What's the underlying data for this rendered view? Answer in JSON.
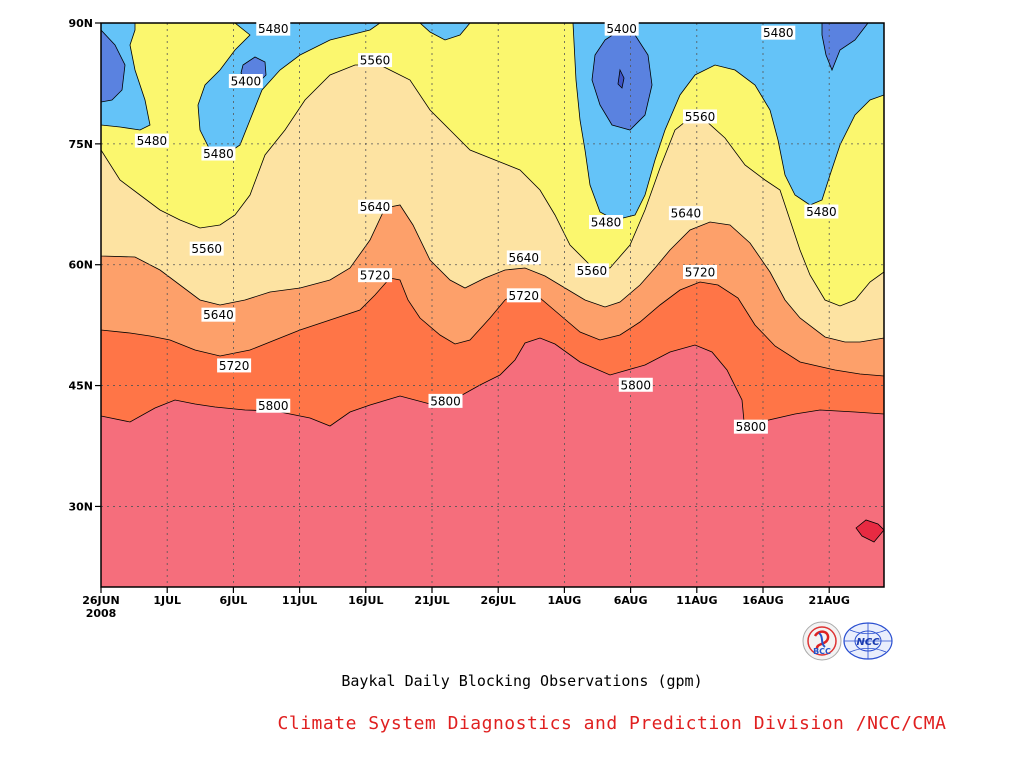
{
  "chart_data": {
    "type": "contour",
    "title": "Baykal Daily Blocking Observations (gpm)",
    "credit": "Climate System Diagnostics and Prediction Division /NCC/CMA",
    "x_ticks": [
      "26JUN",
      "1JUL",
      "6JUL",
      "11JUL",
      "16JUL",
      "21JUL",
      "26JUL",
      "1AUG",
      "6AUG",
      "11AUG",
      "16AUG",
      "21AUG"
    ],
    "x_year": "2008",
    "y_ticks": [
      "30N",
      "45N",
      "60N",
      "75N",
      "90N"
    ],
    "y_values": [
      30,
      45,
      60,
      75,
      90
    ],
    "ylim": [
      20,
      90
    ],
    "contour_levels": [
      5400,
      5480,
      5560,
      5640,
      5720,
      5800
    ],
    "fill_colors": {
      "below_5400": "#5a82e0",
      "5400_5480": "#64c3f8",
      "5480_5560": "#fbf76e",
      "5560_5640": "#fde3a2",
      "5640_5720": "#fda06a",
      "5720_5800": "#ff7547",
      "above_5800": "#f56e7c",
      "peak": "#e82a42"
    },
    "contour_labels": [
      {
        "text": "5480",
        "x": 0.22,
        "y": 89.3
      },
      {
        "text": "5400",
        "x": 0.185,
        "y": 82.8
      },
      {
        "text": "5560",
        "x": 0.35,
        "y": 85.4
      },
      {
        "text": "5480",
        "x": 0.065,
        "y": 75.4
      },
      {
        "text": "5480",
        "x": 0.15,
        "y": 73.8
      },
      {
        "text": "5560",
        "x": 0.135,
        "y": 62.0
      },
      {
        "text": "5640",
        "x": 0.35,
        "y": 67.2
      },
      {
        "text": "5640",
        "x": 0.15,
        "y": 53.8
      },
      {
        "text": "5720",
        "x": 0.35,
        "y": 58.7
      },
      {
        "text": "5720",
        "x": 0.17,
        "y": 47.5
      },
      {
        "text": "5800",
        "x": 0.22,
        "y": 42.5
      },
      {
        "text": "5800",
        "x": 0.44,
        "y": 43.1
      },
      {
        "text": "5640",
        "x": 0.54,
        "y": 60.9
      },
      {
        "text": "5720",
        "x": 0.54,
        "y": 56.2
      },
      {
        "text": "5400",
        "x": 0.665,
        "y": 89.3
      },
      {
        "text": "5480",
        "x": 0.645,
        "y": 65.3
      },
      {
        "text": "5560",
        "x": 0.627,
        "y": 59.3
      },
      {
        "text": "5560",
        "x": 0.765,
        "y": 78.4
      },
      {
        "text": "5640",
        "x": 0.747,
        "y": 66.4
      },
      {
        "text": "5720",
        "x": 0.765,
        "y": 59.1
      },
      {
        "text": "5800",
        "x": 0.683,
        "y": 45.1
      },
      {
        "text": "5800",
        "x": 0.83,
        "y": 39.9
      },
      {
        "text": "5480",
        "x": 0.865,
        "y": 88.8
      },
      {
        "text": "5480",
        "x": 0.92,
        "y": 66.6
      }
    ]
  },
  "logos": {
    "bcc": {
      "text": "BCC",
      "icon": "bcc-logo-icon"
    },
    "ncc": {
      "text": "NCC",
      "icon": "ncc-logo-icon"
    }
  }
}
